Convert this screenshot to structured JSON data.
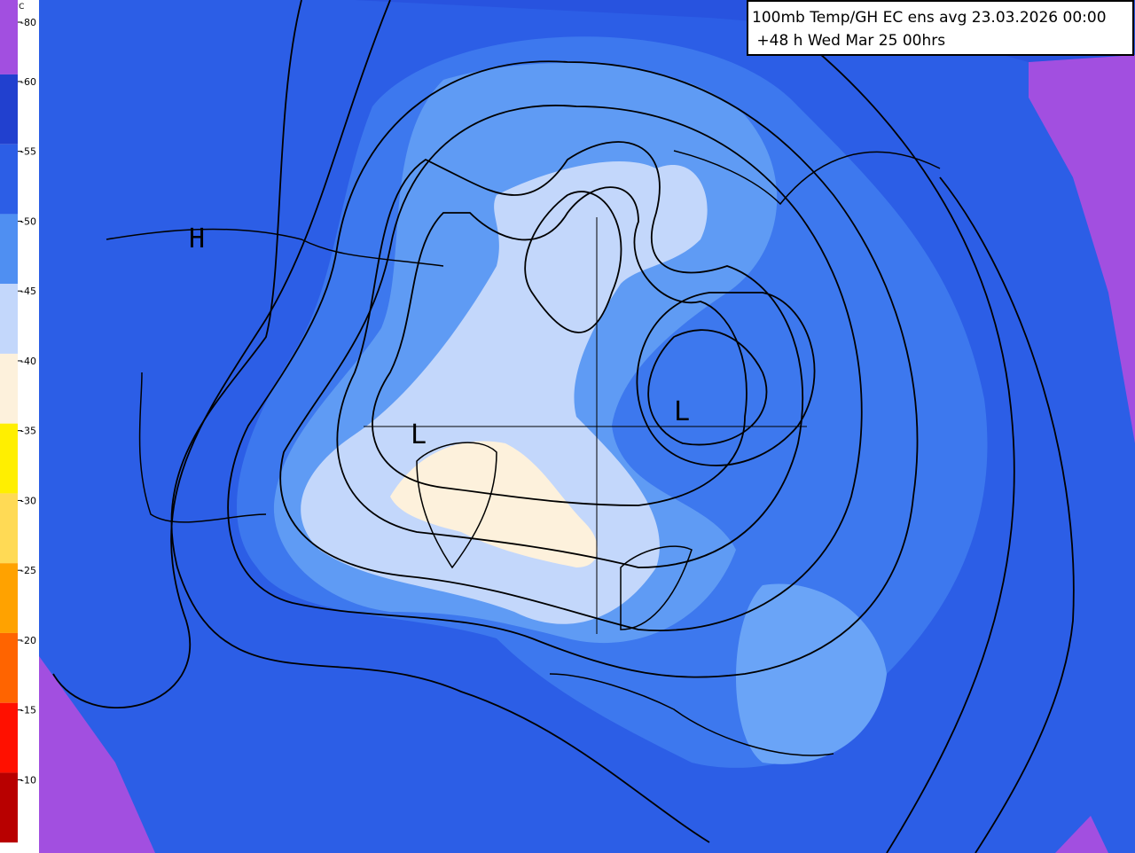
{
  "title": {
    "line1": "100mb Temp/GH  EC ens avg 23.03.2026 00:00",
    "line2": " +48 h Wed Mar 25 00hrs"
  },
  "legend": {
    "unit": "°C",
    "items": [
      {
        "label": "-80",
        "color": "#a24fe0"
      },
      {
        "label": "-60",
        "color": "#2140cf"
      },
      {
        "label": "-55",
        "color": "#2c5ee6"
      },
      {
        "label": "-50",
        "color": "#4f8ff2"
      },
      {
        "label": "-45",
        "color": "#c3d7fb"
      },
      {
        "label": "-40",
        "color": "#fdf1dc"
      },
      {
        "label": "-35",
        "color": "#ffef00"
      },
      {
        "label": "-30",
        "color": "#ffda55"
      },
      {
        "label": "-25",
        "color": "#ffa200"
      },
      {
        "label": "-20",
        "color": "#ff6400"
      },
      {
        "label": "-15",
        "color": "#ff1000"
      },
      {
        "label": "-10",
        "color": "#b80000"
      }
    ]
  },
  "pressure_centers": [
    {
      "label": "H"
    },
    {
      "label": "L"
    },
    {
      "label": "L"
    }
  ]
}
